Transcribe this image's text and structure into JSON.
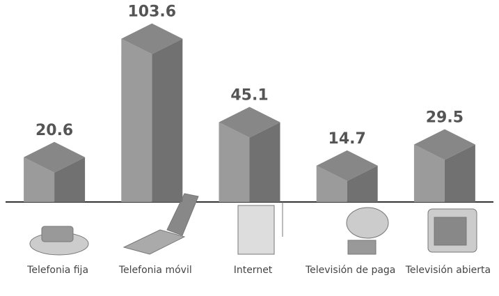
{
  "chart_data": {
    "type": "bar3d",
    "categories": [
      "Telefonia fija",
      "Telefonia móvil",
      "Internet",
      "Televisión de paga",
      "Televisión abierta"
    ],
    "values": [
      20.6,
      103.6,
      45.1,
      14.7,
      29.5
    ],
    "color": "#8a8a8a"
  }
}
